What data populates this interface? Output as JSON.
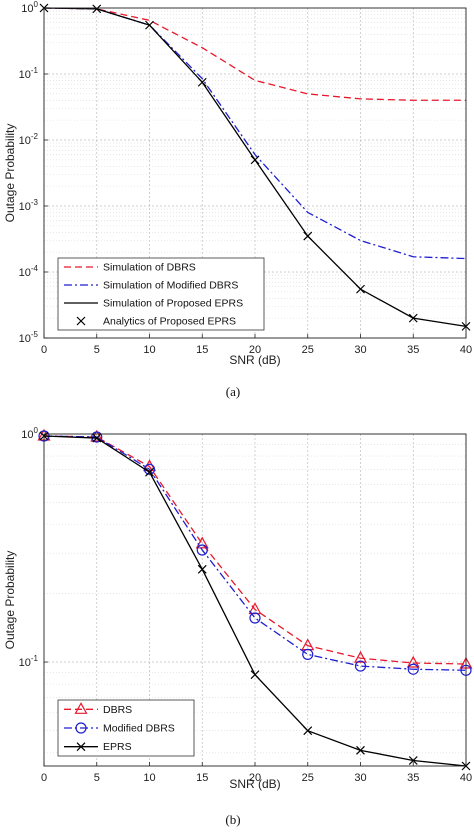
{
  "chart_data": [
    {
      "type": "line",
      "caption": "(a)",
      "xlabel": "SNR (dB)",
      "ylabel": "Outage Probability",
      "xlim": [
        0,
        40
      ],
      "ylim": [
        1e-05,
        1
      ],
      "yscale": "log",
      "grid": true,
      "legend_position": "bottom-left",
      "xticks": [
        "0",
        "5",
        "10",
        "15",
        "20",
        "25",
        "30",
        "35",
        "40"
      ],
      "yticks": [
        {
          "value": 1,
          "exp": "0"
        },
        {
          "value": 0.1,
          "exp": "-1"
        },
        {
          "value": 0.01,
          "exp": "-2"
        },
        {
          "value": 0.001,
          "exp": "-3"
        },
        {
          "value": 0.0001,
          "exp": "-4"
        },
        {
          "value": 1e-05,
          "exp": "-5"
        }
      ],
      "tick_base": "10",
      "series": [
        {
          "name": "Simulation of DBRS",
          "color": "#e8192c",
          "dash": "dashed",
          "marker": "none",
          "x": [
            0,
            5,
            10,
            15,
            20,
            25,
            30,
            35,
            40
          ],
          "y": [
            1,
            0.97,
            0.65,
            0.25,
            0.08,
            0.05,
            0.042,
            0.04,
            0.04
          ]
        },
        {
          "name": "Simulation of Modified DBRS",
          "color": "#1f1fd1",
          "dash": "dashdot",
          "marker": "none",
          "x": [
            0,
            5,
            10,
            15,
            20,
            25,
            30,
            35,
            40
          ],
          "y": [
            1,
            0.97,
            0.55,
            0.085,
            0.006,
            0.0008,
            0.0003,
            0.00017,
            0.00016
          ]
        },
        {
          "name": "Simulation of Proposed EPRS",
          "color": "#000000",
          "dash": "solid",
          "marker": "none",
          "x": [
            0,
            5,
            10,
            15,
            20,
            25,
            30,
            35,
            40
          ],
          "y": [
            1,
            0.97,
            0.55,
            0.075,
            0.005,
            0.00035,
            5.5e-05,
            2e-05,
            1.5e-05
          ]
        },
        {
          "name": "Analytics of Proposed EPRS",
          "color": "#000000",
          "dash": "none",
          "marker": "x",
          "x": [
            0,
            5,
            10,
            15,
            20,
            25,
            30,
            35,
            40
          ],
          "y": [
            1,
            0.97,
            0.55,
            0.075,
            0.005,
            0.00035,
            5.5e-05,
            2e-05,
            1.5e-05
          ]
        }
      ]
    },
    {
      "type": "line",
      "caption": "(b)",
      "xlabel": "SNR (dB)",
      "ylabel": "Outage Probability",
      "xlim": [
        0,
        40
      ],
      "ylim": [
        0.035,
        1
      ],
      "yscale": "log",
      "grid": true,
      "legend_position": "bottom-left",
      "xticks": [
        "0",
        "5",
        "10",
        "15",
        "20",
        "25",
        "30",
        "35",
        "40"
      ],
      "yticks": [
        {
          "value": 1,
          "exp": "0"
        },
        {
          "value": 0.1,
          "exp": "-1"
        }
      ],
      "tick_base": "10",
      "series": [
        {
          "name": "DBRS",
          "color": "#e8192c",
          "dash": "dashed",
          "marker": "triangle",
          "x": [
            0,
            5,
            10,
            15,
            20,
            25,
            30,
            35,
            40
          ],
          "y": [
            0.98,
            0.97,
            0.72,
            0.33,
            0.17,
            0.118,
            0.104,
            0.099,
            0.098
          ]
        },
        {
          "name": "Modified DBRS",
          "color": "#1f1fd1",
          "dash": "dashdot",
          "marker": "circle",
          "x": [
            0,
            5,
            10,
            15,
            20,
            25,
            30,
            35,
            40
          ],
          "y": [
            0.98,
            0.97,
            0.7,
            0.31,
            0.156,
            0.108,
            0.096,
            0.093,
            0.092
          ]
        },
        {
          "name": "EPRS",
          "color": "#000000",
          "dash": "solid",
          "marker": "x",
          "x": [
            0,
            5,
            10,
            15,
            20,
            25,
            30,
            35,
            40
          ],
          "y": [
            0.98,
            0.96,
            0.68,
            0.255,
            0.088,
            0.05,
            0.041,
            0.037,
            0.035
          ]
        }
      ]
    }
  ]
}
